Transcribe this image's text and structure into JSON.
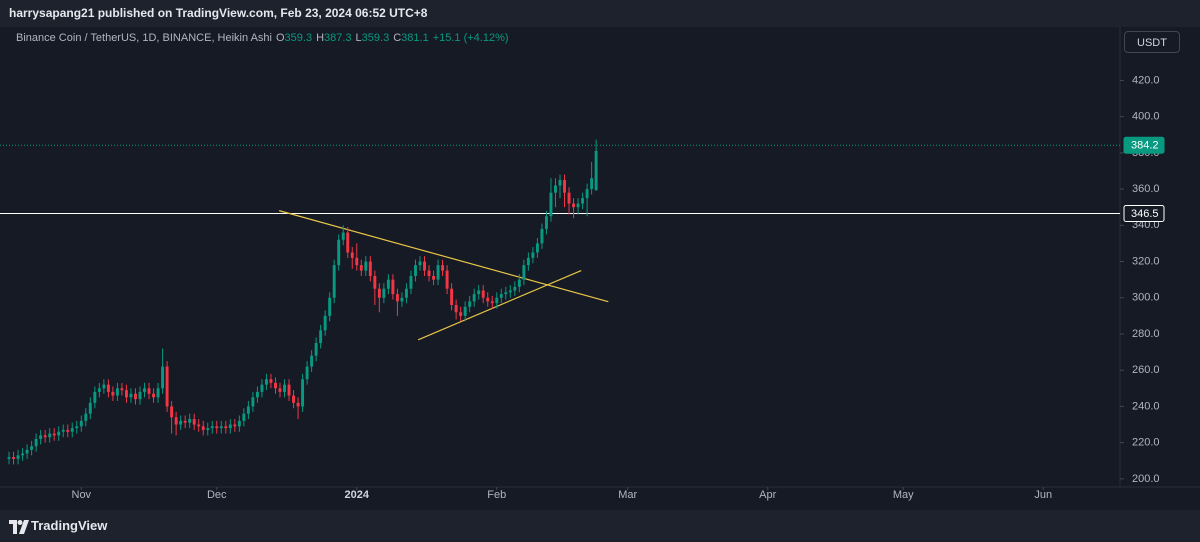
{
  "publish_info": "harrysapang21 published on TradingView.com, Feb 23, 2024 06:52 UTC+8",
  "footer": {
    "brand": "TradingView"
  },
  "currency": "USDT",
  "chart_data": {
    "type": "candlestick",
    "title": "Binance Coin / TetherUS, 1D, BINANCE, Heikin Ashi",
    "ohlc_legend": [
      {
        "label": "O",
        "value": 359.3
      },
      {
        "label": "H",
        "value": 387.3
      },
      {
        "label": "L",
        "value": 359.3
      },
      {
        "label": "C",
        "value": 381.1
      }
    ],
    "change": "+15.1 (+4.12%)",
    "up_color": "#089981",
    "down_color": "#f23645",
    "x": [
      0,
      1,
      2,
      3,
      4,
      5,
      6,
      7,
      8,
      9,
      10,
      11,
      12,
      13,
      14,
      15,
      16,
      17,
      18,
      19,
      20,
      21,
      22,
      23,
      24,
      25,
      26,
      27,
      28,
      29,
      30,
      31,
      32,
      33,
      34,
      35,
      36,
      37,
      38,
      39,
      40,
      41,
      42,
      43,
      44,
      45,
      46,
      47,
      48,
      49,
      50,
      51,
      52,
      53,
      54,
      55,
      56,
      57,
      58,
      59,
      60,
      61,
      62,
      63,
      64,
      65,
      66,
      67,
      68,
      69,
      70,
      71,
      72,
      73,
      74,
      75,
      76,
      77,
      78,
      79,
      80,
      81,
      82,
      83,
      84,
      85,
      86,
      87,
      88,
      89,
      90,
      91,
      92,
      93,
      94,
      95,
      96,
      97,
      98,
      99,
      100,
      101,
      102,
      103,
      104,
      105,
      106,
      107,
      108,
      109,
      110,
      111,
      112,
      113,
      114,
      115,
      116,
      117,
      118,
      119,
      120,
      121,
      122,
      123,
      124,
      125,
      126,
      127,
      128,
      129,
      130
    ],
    "open": [
      211,
      212,
      211,
      213,
      214,
      216,
      218,
      222,
      224,
      223,
      225,
      224,
      226,
      227,
      226,
      228,
      229,
      232,
      236,
      242,
      248,
      250,
      252,
      248,
      246,
      250,
      249,
      245,
      247,
      244,
      248,
      250,
      247,
      245,
      250,
      262,
      240,
      234,
      230,
      232,
      231,
      233,
      230,
      229,
      227,
      228,
      229,
      228,
      229,
      228,
      230,
      229,
      232,
      236,
      240,
      245,
      248,
      252,
      255,
      253,
      250,
      248,
      252,
      246,
      242,
      240,
      255,
      262,
      268,
      275,
      282,
      290,
      300,
      318,
      332,
      336,
      325,
      322,
      318,
      315,
      320,
      312,
      305,
      300,
      305,
      310,
      302,
      298,
      300,
      305,
      312,
      318,
      320,
      315,
      312,
      310,
      318,
      315,
      305,
      296,
      292,
      290,
      295,
      298,
      302,
      304,
      300,
      298,
      297,
      300,
      302,
      303,
      304,
      306,
      310,
      318,
      322,
      325,
      330,
      338,
      345,
      358,
      362,
      365,
      358,
      352,
      350,
      352,
      355,
      360,
      359.3
    ],
    "high": [
      215,
      215,
      216,
      217,
      219,
      221,
      225,
      227,
      227,
      228,
      228,
      229,
      230,
      230,
      231,
      232,
      235,
      239,
      245,
      251,
      253,
      255,
      255,
      251,
      253,
      253,
      252,
      250,
      250,
      251,
      253,
      253,
      250,
      253,
      272,
      265,
      243,
      237,
      235,
      235,
      236,
      236,
      233,
      232,
      231,
      232,
      232,
      232,
      232,
      233,
      233,
      235,
      239,
      243,
      248,
      251,
      255,
      258,
      258,
      256,
      253,
      255,
      255,
      249,
      245,
      258,
      265,
      271,
      278,
      285,
      293,
      303,
      321,
      335,
      340,
      339,
      328,
      330,
      321,
      323,
      323,
      315,
      308,
      308,
      313,
      313,
      305,
      303,
      308,
      315,
      321,
      323,
      323,
      318,
      315,
      321,
      321,
      318,
      308,
      299,
      295,
      298,
      301,
      305,
      307,
      307,
      303,
      301,
      303,
      305,
      306,
      307,
      309,
      313,
      321,
      325,
      328,
      333,
      341,
      348,
      366,
      366,
      368,
      368,
      361,
      355,
      355,
      358,
      363,
      375,
      387.3
    ],
    "low": [
      208,
      208,
      208,
      210,
      211,
      213,
      215,
      219,
      220,
      220,
      221,
      221,
      223,
      223,
      223,
      225,
      226,
      229,
      233,
      239,
      245,
      247,
      245,
      243,
      243,
      246,
      242,
      242,
      241,
      241,
      245,
      244,
      242,
      242,
      247,
      237,
      225,
      224,
      227,
      228,
      228,
      227,
      226,
      224,
      224,
      225,
      225,
      225,
      225,
      225,
      226,
      226,
      229,
      233,
      237,
      242,
      245,
      249,
      250,
      247,
      245,
      245,
      243,
      239,
      233,
      237,
      252,
      259,
      265,
      272,
      279,
      287,
      297,
      315,
      329,
      322,
      316,
      315,
      312,
      312,
      309,
      296,
      292,
      297,
      302,
      299,
      290,
      295,
      297,
      302,
      309,
      315,
      312,
      309,
      307,
      307,
      312,
      302,
      293,
      288,
      287,
      287,
      292,
      295,
      299,
      297,
      295,
      294,
      294,
      297,
      299,
      300,
      301,
      303,
      307,
      315,
      319,
      322,
      327,
      335,
      342,
      350,
      355,
      350,
      346,
      344,
      346,
      349,
      345,
      357,
      359.3
    ],
    "close": [
      212,
      211,
      213,
      214,
      216,
      218,
      222,
      224,
      223,
      225,
      224,
      226,
      227,
      226,
      228,
      229,
      232,
      236,
      242,
      248,
      250,
      252,
      248,
      246,
      250,
      249,
      245,
      247,
      244,
      248,
      250,
      247,
      245,
      250,
      262,
      240,
      234,
      230,
      232,
      231,
      233,
      230,
      229,
      227,
      228,
      229,
      228,
      229,
      228,
      230,
      229,
      232,
      236,
      240,
      245,
      248,
      252,
      255,
      253,
      250,
      248,
      252,
      246,
      242,
      240,
      255,
      262,
      268,
      275,
      282,
      290,
      300,
      318,
      332,
      336,
      325,
      322,
      318,
      315,
      320,
      312,
      305,
      300,
      305,
      310,
      302,
      298,
      300,
      305,
      312,
      318,
      320,
      315,
      312,
      310,
      318,
      315,
      305,
      296,
      292,
      290,
      295,
      298,
      302,
      304,
      300,
      298,
      297,
      300,
      302,
      303,
      304,
      306,
      310,
      318,
      322,
      325,
      330,
      338,
      345,
      358,
      362,
      365,
      358,
      352,
      350,
      352,
      355,
      360,
      366,
      381.1
    ],
    "xlim": [
      -2,
      246
    ],
    "xticks": [
      {
        "value": 16,
        "label": "Nov"
      },
      {
        "value": 46,
        "label": "Dec"
      },
      {
        "value": 77,
        "label": "2024"
      },
      {
        "value": 108,
        "label": "Feb"
      },
      {
        "value": 137,
        "label": "Mar"
      },
      {
        "value": 168,
        "label": "Apr"
      },
      {
        "value": 198,
        "label": "May"
      },
      {
        "value": 229,
        "label": "Jun"
      }
    ],
    "ylim": [
      195.5,
      449.5
    ],
    "yticks": [
      {
        "value": 200,
        "label": "200.0"
      },
      {
        "value": 220,
        "label": "220.0"
      },
      {
        "value": 240,
        "label": "240.0"
      },
      {
        "value": 260,
        "label": "260.0"
      },
      {
        "value": 280,
        "label": "280.0"
      },
      {
        "value": 300,
        "label": "300.0"
      },
      {
        "value": 320,
        "label": "320.0"
      },
      {
        "value": 340,
        "label": "340.0"
      },
      {
        "value": 360,
        "label": "360.0"
      },
      {
        "value": 380,
        "label": "380.0"
      },
      {
        "value": 400,
        "label": "400.0"
      },
      {
        "value": 420,
        "label": "420.0"
      }
    ],
    "price_lines": [
      {
        "value": 384.2,
        "color": "#089981",
        "style": "dotted"
      },
      {
        "value": 346.5,
        "color": "#ffffff",
        "style": "solid"
      }
    ],
    "trendlines": [
      {
        "x": [
          59.8,
          132.7
        ],
        "y": [
          348.1,
          297.8
        ],
        "color": "#e8c547"
      },
      {
        "x": [
          90.6,
          126.7
        ],
        "y": [
          276.8,
          315.0
        ],
        "color": "#e8c547"
      }
    ]
  }
}
